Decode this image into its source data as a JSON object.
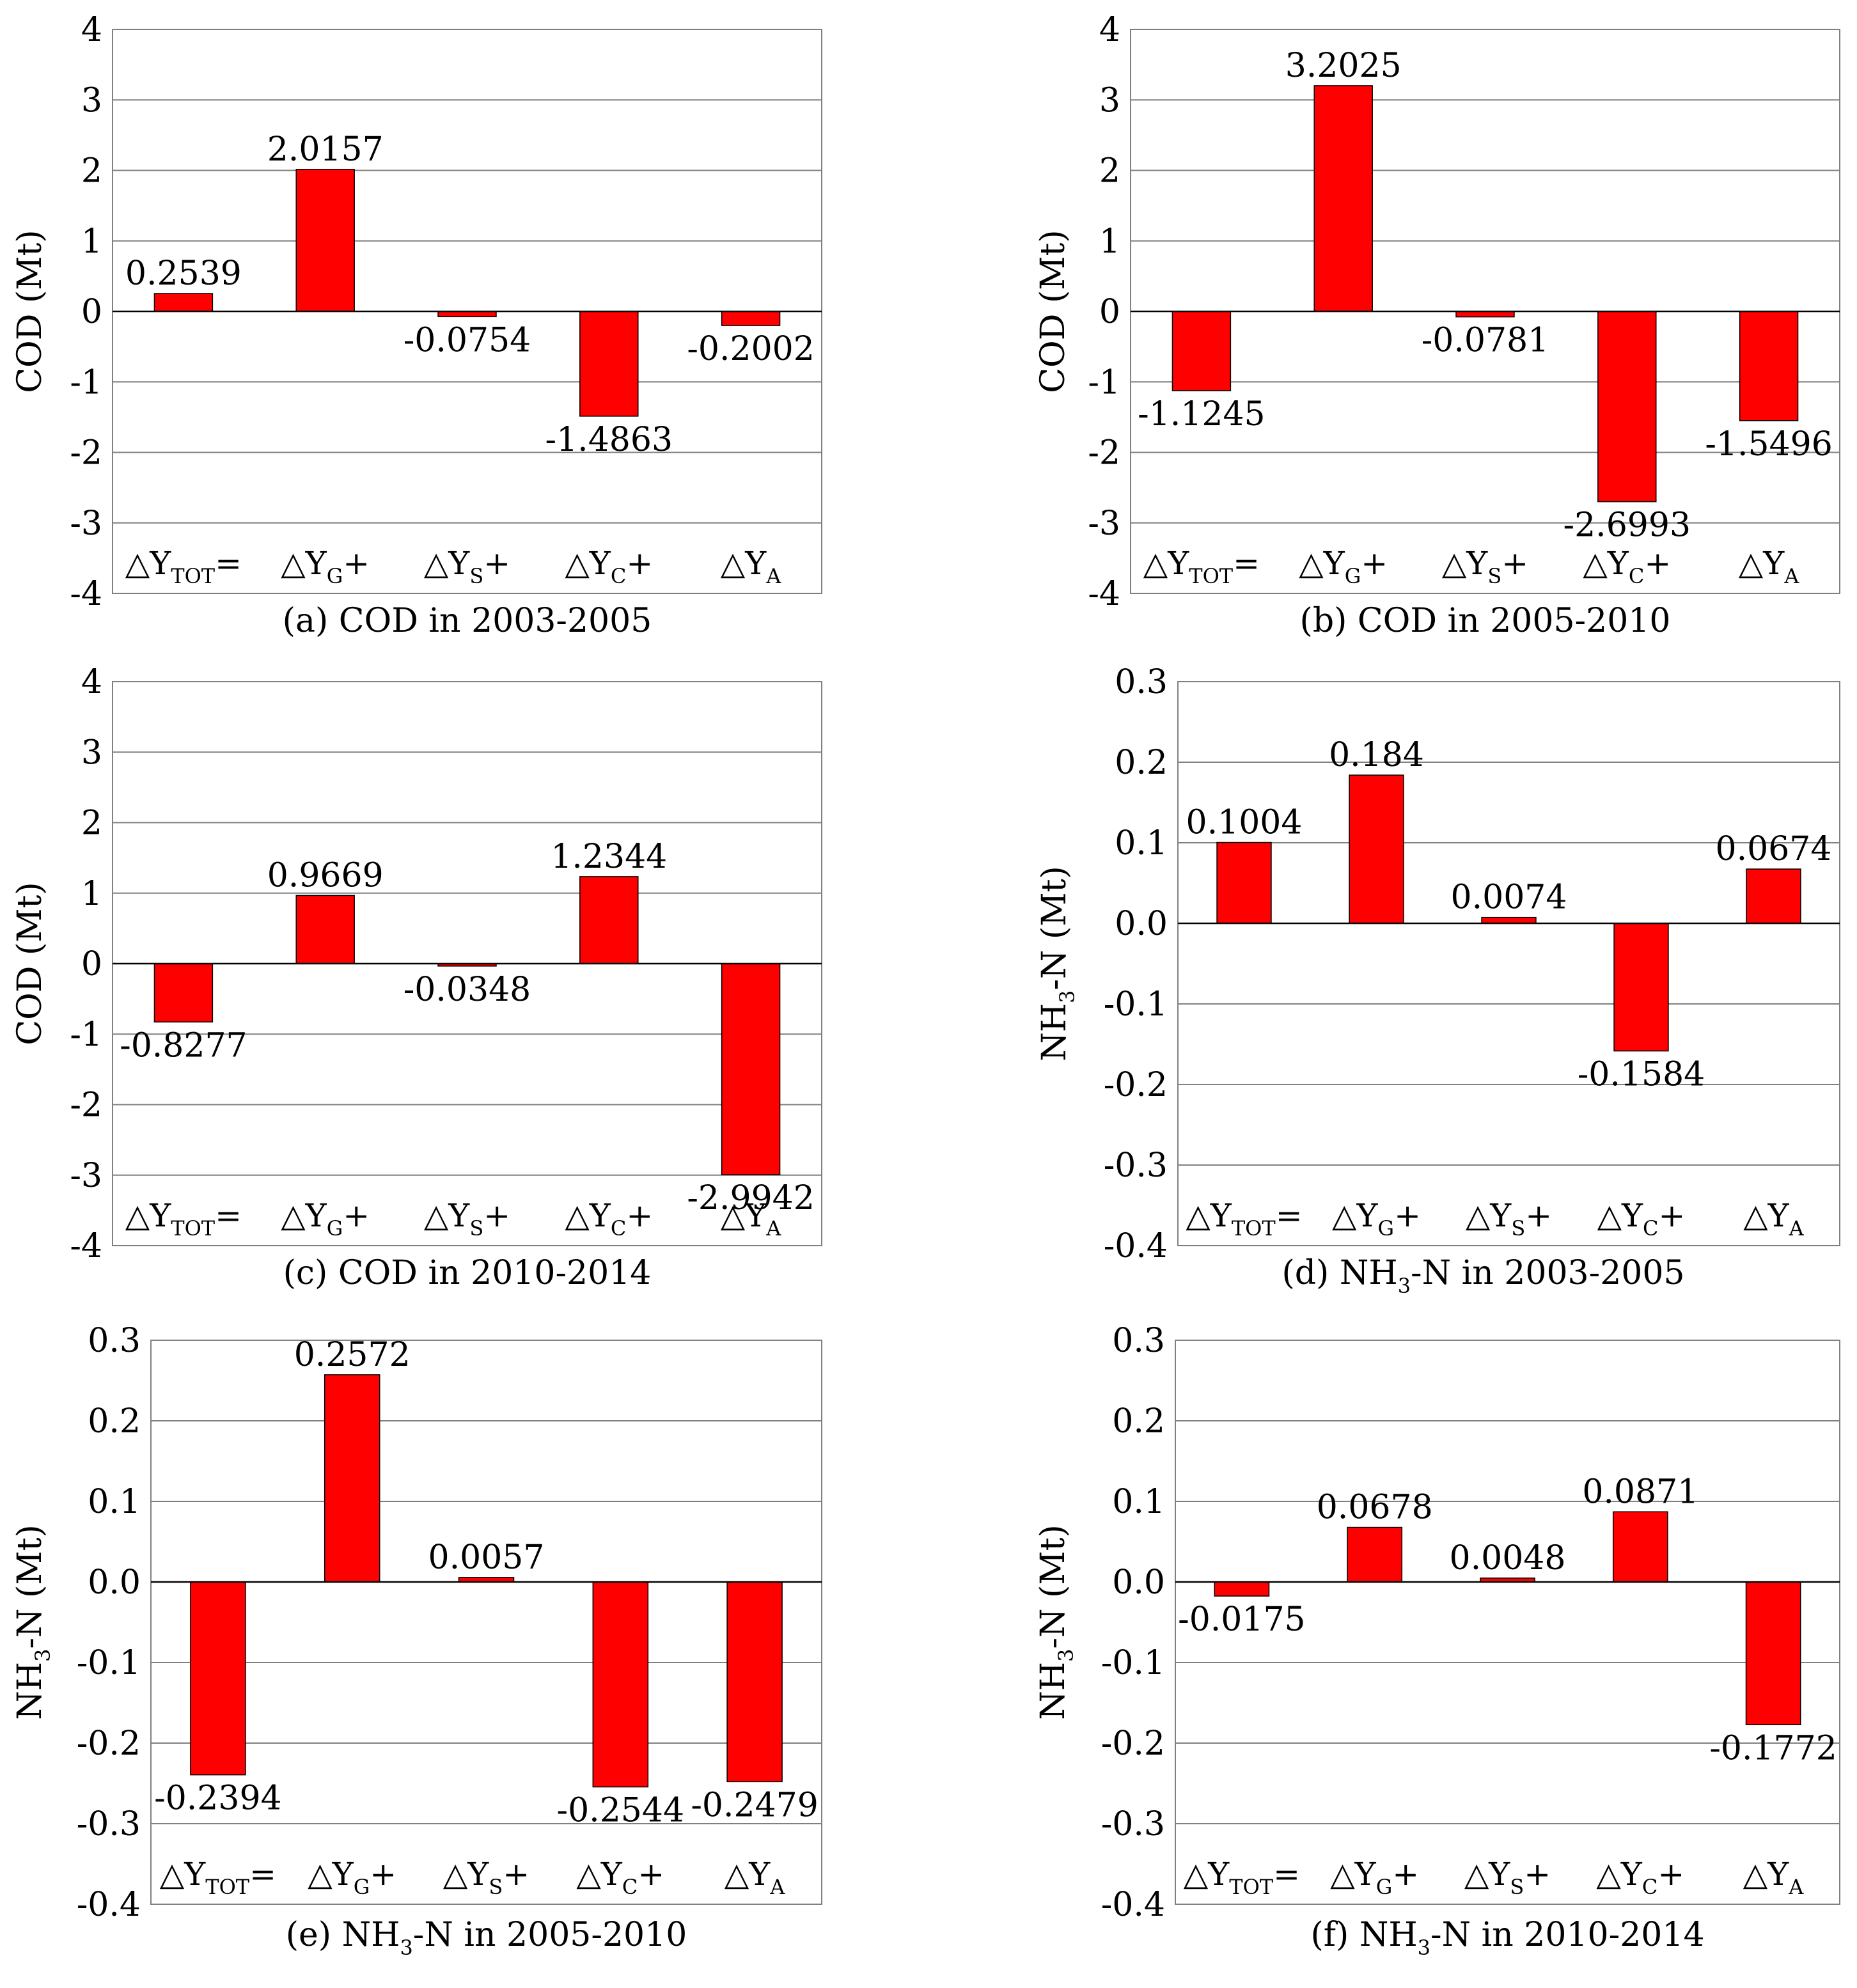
{
  "colors": {
    "bar": "#ff0000",
    "bar_stroke": "#000000",
    "grid": "#808080",
    "frame": "#808080",
    "zero_line": "#000000"
  },
  "chart_data": [
    {
      "id": "a",
      "type": "bar",
      "title": "(a) COD in 2003-2005",
      "title_main": "(a) COD in 2003-2005",
      "title_sub": "",
      "title_tail": "",
      "ylabel_main": "COD (Mt)",
      "ylabel_sub": "",
      "ylabel_tail": "",
      "categories": [
        "△Y_TOT=",
        "△Y_G+",
        "△Y_S+",
        "△Y_C+",
        "△Y_A"
      ],
      "values": [
        0.2539,
        2.0157,
        -0.0754,
        -1.4863,
        -0.2002
      ],
      "value_labels": [
        "0.2539",
        "2.0157",
        "-0.0754",
        "-1.4863",
        "-0.2002"
      ],
      "ylim": [
        -4,
        4
      ],
      "yticks": [
        "4",
        "3",
        "2",
        "1",
        "0",
        "-1",
        "-2",
        "-3",
        "-4"
      ],
      "grid": true
    },
    {
      "id": "b",
      "type": "bar",
      "title": "(b) COD in 2005-2010",
      "title_main": "(b) COD in 2005-2010",
      "title_sub": "",
      "title_tail": "",
      "ylabel_main": "COD (Mt)",
      "ylabel_sub": "",
      "ylabel_tail": "",
      "categories": [
        "△Y_TOT=",
        "△Y_G+",
        "△Y_S+",
        "△Y_C+",
        "△Y_A"
      ],
      "values": [
        -1.1245,
        3.2025,
        -0.0781,
        -2.6993,
        -1.5496
      ],
      "value_labels": [
        "-1.1245",
        "3.2025",
        "-0.0781",
        "-2.6993",
        "-1.5496"
      ],
      "ylim": [
        -4,
        4
      ],
      "yticks": [
        "4",
        "3",
        "2",
        "1",
        "0",
        "-1",
        "-2",
        "-3",
        "-4"
      ],
      "grid": true
    },
    {
      "id": "c",
      "type": "bar",
      "title": "(c) COD in 2010-2014",
      "title_main": "(c) COD in 2010-2014",
      "title_sub": "",
      "title_tail": "",
      "ylabel_main": "COD (Mt)",
      "ylabel_sub": "",
      "ylabel_tail": "",
      "categories": [
        "△Y_TOT=",
        "△Y_G+",
        "△Y_S+",
        "△Y_C+",
        "△Y_A"
      ],
      "values": [
        -0.8277,
        0.9669,
        -0.0348,
        1.2344,
        -2.9942
      ],
      "value_labels": [
        "-0.8277",
        "0.9669",
        "-0.0348",
        "1.2344",
        "-2.9942"
      ],
      "ylim": [
        -4,
        4
      ],
      "yticks": [
        "4",
        "3",
        "2",
        "1",
        "0",
        "-1",
        "-2",
        "-3",
        "-4"
      ],
      "grid": true
    },
    {
      "id": "d",
      "type": "bar",
      "title": "(d) NH3-N in 2003-2005",
      "title_main": "(d) NH",
      "title_sub": "3",
      "title_tail": "-N in 2003-2005",
      "ylabel_main": "NH",
      "ylabel_sub": "3",
      "ylabel_tail": "-N (Mt)",
      "categories": [
        "△Y_TOT=",
        "△Y_G+",
        "△Y_S+",
        "△Y_C+",
        "△Y_A"
      ],
      "values": [
        0.1004,
        0.184,
        0.0074,
        -0.1584,
        0.0674
      ],
      "value_labels": [
        "0.1004",
        "0.184",
        "0.0074",
        "-0.1584",
        "0.0674"
      ],
      "ylim": [
        -0.4,
        0.3
      ],
      "yticks": [
        "0.3",
        "0.2",
        "0.1",
        "0.0",
        "-0.1",
        "-0.2",
        "-0.3",
        "-0.4"
      ],
      "grid": true
    },
    {
      "id": "e",
      "type": "bar",
      "title": "(e) NH3-N in 2005-2010",
      "title_main": "(e) NH",
      "title_sub": "3",
      "title_tail": "-N in 2005-2010",
      "ylabel_main": "NH",
      "ylabel_sub": "3",
      "ylabel_tail": "-N (Mt)",
      "categories": [
        "△Y_TOT=",
        "△Y_G+",
        "△Y_S+",
        "△Y_C+",
        "△Y_A"
      ],
      "values": [
        -0.2394,
        0.2572,
        0.0057,
        -0.2544,
        -0.2479
      ],
      "value_labels": [
        "-0.2394",
        "0.2572",
        "0.0057",
        "-0.2544",
        "-0.2479"
      ],
      "ylim": [
        -0.4,
        0.3
      ],
      "yticks": [
        "0.3",
        "0.2",
        "0.1",
        "0.0",
        "-0.1",
        "-0.2",
        "-0.3",
        "-0.4"
      ],
      "grid": true
    },
    {
      "id": "f",
      "type": "bar",
      "title": "(f) NH3-N in 2010-2014",
      "title_main": "(f) NH",
      "title_sub": "3",
      "title_tail": "-N in 2010-2014",
      "ylabel_main": "NH",
      "ylabel_sub": "3",
      "ylabel_tail": "-N (Mt)",
      "categories": [
        "△Y_TOT=",
        "△Y_G+",
        "△Y_S+",
        "△Y_C+",
        "△Y_A"
      ],
      "values": [
        -0.0175,
        0.0678,
        0.0048,
        0.0871,
        -0.1772
      ],
      "value_labels": [
        "-0.0175",
        "0.0678",
        "0.0048",
        "0.0871",
        "-0.1772"
      ],
      "ylim": [
        -0.4,
        0.3
      ],
      "yticks": [
        "0.3",
        "0.2",
        "0.1",
        "0.0",
        "-0.1",
        "-0.2",
        "-0.3",
        "-0.4"
      ],
      "grid": true
    }
  ]
}
